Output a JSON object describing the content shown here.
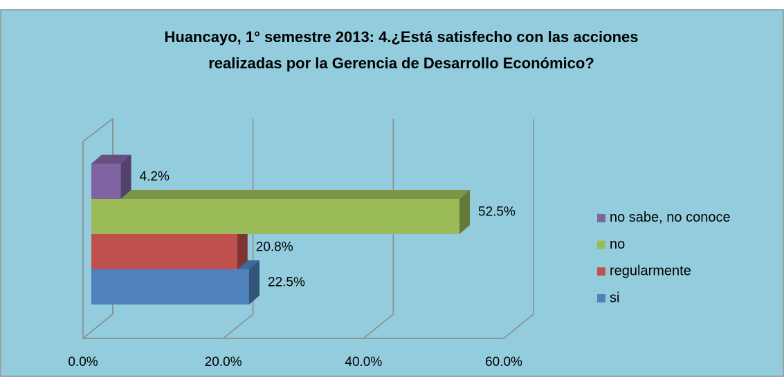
{
  "chart_data": {
    "type": "bar3d_horizontal",
    "title": "Huancayo, 1° semestre 2013: 4.¿Está satisfecho con las acciones realizadas por la Gerencia de Desarrollo Económico?",
    "series": [
      {
        "name": "si",
        "color": "#4f81bd",
        "values": [
          22.5
        ],
        "value_labels": [
          "22.5%"
        ]
      },
      {
        "name": "regularmente",
        "color": "#c0504d",
        "values": [
          20.8
        ],
        "value_labels": [
          "20.8%"
        ]
      },
      {
        "name": "no",
        "color": "#9bbb59",
        "values": [
          52.5
        ],
        "value_labels": [
          "52.5%"
        ]
      },
      {
        "name": "no sabe, no conoce",
        "color": "#8064a2",
        "values": [
          4.2
        ],
        "value_labels": [
          "4.2%"
        ]
      }
    ],
    "xlim": [
      0,
      60
    ],
    "xticks": [
      {
        "value": 0,
        "label": "0.0%"
      },
      {
        "value": 20,
        "label": "20.0%"
      },
      {
        "value": 40,
        "label": "40.0%"
      },
      {
        "value": 60,
        "label": "60.0%"
      }
    ],
    "grid": true,
    "legend": "right"
  }
}
